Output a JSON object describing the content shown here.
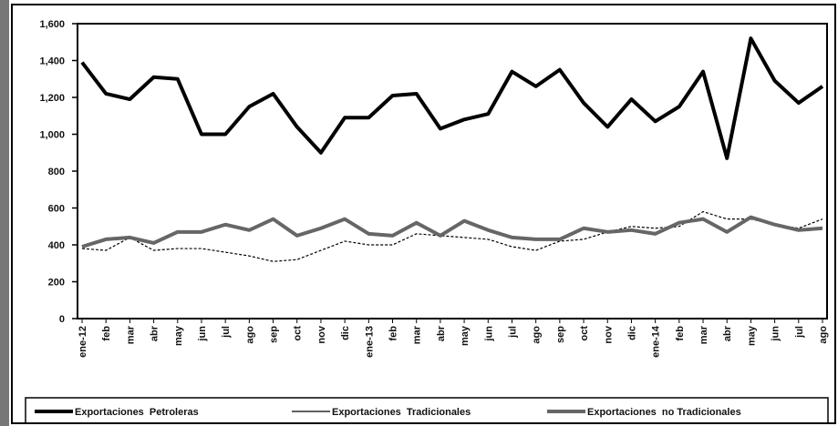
{
  "chart_data": {
    "type": "line",
    "categories": [
      "ene-12",
      "feb",
      "mar",
      "abr",
      "may",
      "jun",
      "jul",
      "ago",
      "sep",
      "oct",
      "nov",
      "dic",
      "ene-13",
      "feb",
      "mar",
      "abr",
      "may",
      "jun",
      "jul",
      "ago",
      "sep",
      "oct",
      "nov",
      "dic",
      "ene-14",
      "feb",
      "mar",
      "abr",
      "may",
      "jun",
      "jul",
      "ago"
    ],
    "series": [
      {
        "name": "Exportaciones  Petroleras",
        "color": "#000000",
        "values": [
          1390,
          1220,
          1190,
          1310,
          1300,
          1000,
          1000,
          1150,
          1220,
          1040,
          900,
          1090,
          1090,
          1210,
          1220,
          1030,
          1080,
          1110,
          1340,
          1260,
          1350,
          1170,
          1040,
          1190,
          1070,
          1150,
          1340,
          870,
          1520,
          1290,
          1170,
          1260
        ]
      },
      {
        "name": "Exportaciones  Tradicionales",
        "color": "#000000",
        "values": [
          380,
          370,
          440,
          370,
          380,
          380,
          360,
          340,
          310,
          320,
          370,
          420,
          400,
          400,
          460,
          450,
          440,
          430,
          390,
          370,
          420,
          430,
          470,
          500,
          490,
          500,
          580,
          540,
          540,
          510,
          490,
          540
        ]
      },
      {
        "name": "Exportaciones  no Tradicionales",
        "color": "#666666",
        "values": [
          390,
          430,
          440,
          410,
          470,
          470,
          510,
          480,
          540,
          450,
          490,
          540,
          460,
          450,
          520,
          450,
          530,
          480,
          440,
          430,
          430,
          490,
          470,
          480,
          460,
          520,
          540,
          470,
          550,
          510,
          480,
          490
        ]
      }
    ],
    "ylim": [
      0,
      1600
    ],
    "yticks": [
      0,
      200,
      400,
      600,
      800,
      {
        "value": 1000,
        "label": "1,000"
      },
      {
        "value": 1200,
        "label": "1,200"
      },
      {
        "value": 1400,
        "label": "1,400"
      },
      {
        "value": 1600,
        "label": "1,600"
      }
    ],
    "legend": "bottom"
  }
}
